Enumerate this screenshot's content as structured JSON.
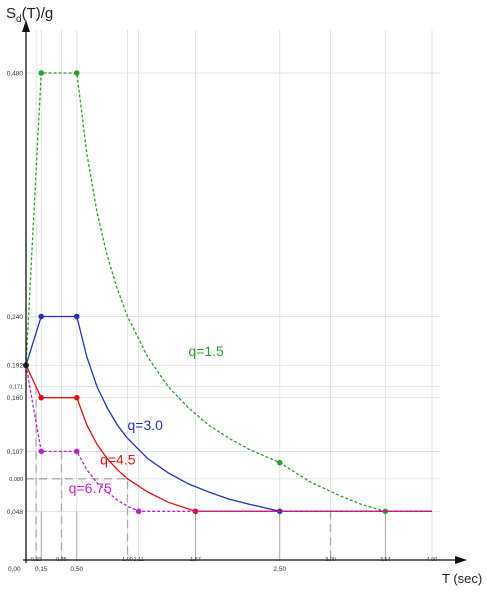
{
  "chart_data": {
    "type": "line",
    "title": "",
    "ylabel_main": "S",
    "ylabel_sub": "d",
    "ylabel_tail": "(T)/g",
    "xlabel": "T (sec)",
    "xlim": [
      0,
      4.0
    ],
    "ylim": [
      0,
      0.5
    ],
    "origin_label": "0,00",
    "grid": true,
    "x_gridlines": [
      0.1,
      0.15,
      0.35,
      0.5,
      1.0,
      1.11,
      1.67,
      2.5,
      3.0,
      3.54,
      4.0
    ],
    "x_ticks": [
      {
        "value": 0.1,
        "label": "0,10",
        "row": "upper"
      },
      {
        "value": 0.15,
        "label": "0,15",
        "row": "lower"
      },
      {
        "value": 0.35,
        "label": "0,35",
        "row": "upper"
      },
      {
        "value": 0.5,
        "label": "0,50",
        "row": "lower"
      },
      {
        "value": 1.0,
        "label": "1,00",
        "row": "upper"
      },
      {
        "value": 1.11,
        "label": "1,11",
        "row": "upper"
      },
      {
        "value": 1.67,
        "label": "1,67",
        "row": "upper"
      },
      {
        "value": 2.5,
        "label": "2,50",
        "row": "lower"
      },
      {
        "value": 3.0,
        "label": "3,00",
        "row": "upper"
      },
      {
        "value": 3.54,
        "label": "3,54",
        "row": "upper"
      },
      {
        "value": 4.0,
        "label": "4,00",
        "row": "upper"
      }
    ],
    "y_ticks": [
      {
        "value": 0.48,
        "label": "0,480",
        "size": "normal"
      },
      {
        "value": 0.24,
        "label": "0,240",
        "size": "normal"
      },
      {
        "value": 0.192,
        "label": "0,192",
        "size": "normal"
      },
      {
        "value": 0.171,
        "label": "0,171",
        "size": "small"
      },
      {
        "value": 0.16,
        "label": "0,160",
        "size": "normal"
      },
      {
        "value": 0.107,
        "label": "0,107",
        "size": "normal"
      },
      {
        "value": 0.08,
        "label": "0,080",
        "size": "small"
      },
      {
        "value": 0.048,
        "label": "0,048",
        "size": "normal"
      }
    ],
    "reference_lines": [
      {
        "points": [
          [
            0.0,
            0.08
          ],
          [
            1.0,
            0.08
          ],
          [
            1.0,
            0.0
          ]
        ]
      },
      {
        "points": [
          [
            0.35,
            0.107
          ],
          [
            0.35,
            0.0
          ]
        ]
      },
      {
        "points": [
          [
            0.1,
            0.171
          ],
          [
            0.1,
            0.0
          ]
        ]
      },
      {
        "points": [
          [
            3.0,
            0.048
          ],
          [
            3.0,
            0.0
          ]
        ]
      }
    ],
    "drop_lines": [
      0.15,
      0.5,
      1.67,
      2.5,
      3.54
    ],
    "series": [
      {
        "name": "q=1.5",
        "color": "#2ca02c",
        "dashed": true,
        "label_at": [
          1.6,
          0.201
        ],
        "points": [
          [
            0.0,
            0.192
          ],
          [
            0.15,
            0.48
          ],
          [
            0.5,
            0.48
          ],
          [
            0.6,
            0.4
          ],
          [
            0.7,
            0.343
          ],
          [
            0.8,
            0.3
          ],
          [
            0.9,
            0.267
          ],
          [
            1.0,
            0.24
          ],
          [
            1.2,
            0.2
          ],
          [
            1.4,
            0.171
          ],
          [
            1.6,
            0.15
          ],
          [
            1.8,
            0.133
          ],
          [
            2.0,
            0.12
          ],
          [
            2.2,
            0.109
          ],
          [
            2.5,
            0.096
          ],
          [
            2.8,
            0.077
          ],
          [
            3.1,
            0.063
          ],
          [
            3.3,
            0.055
          ],
          [
            3.54,
            0.048
          ],
          [
            4.0,
            0.048
          ]
        ],
        "markers": [
          [
            0.15,
            0.48
          ],
          [
            0.5,
            0.48
          ],
          [
            2.5,
            0.096
          ],
          [
            3.54,
            0.048
          ]
        ]
      },
      {
        "name": "q=3.0",
        "color": "#2233bb",
        "dashed": false,
        "label_at": [
          1.0,
          0.128
        ],
        "points": [
          [
            0.0,
            0.192
          ],
          [
            0.15,
            0.24
          ],
          [
            0.5,
            0.24
          ],
          [
            0.6,
            0.2
          ],
          [
            0.7,
            0.171
          ],
          [
            0.8,
            0.15
          ],
          [
            0.9,
            0.133
          ],
          [
            1.0,
            0.12
          ],
          [
            1.2,
            0.1
          ],
          [
            1.4,
            0.086
          ],
          [
            1.6,
            0.075
          ],
          [
            1.8,
            0.067
          ],
          [
            2.0,
            0.06
          ],
          [
            2.2,
            0.055
          ],
          [
            2.5,
            0.048
          ],
          [
            4.0,
            0.048
          ]
        ],
        "markers": [
          [
            0.15,
            0.24
          ],
          [
            0.5,
            0.24
          ],
          [
            2.5,
            0.048
          ]
        ]
      },
      {
        "name": "q=4.5",
        "color": "#dd1111",
        "dashed": false,
        "label_at": [
          0.73,
          0.094
        ],
        "points": [
          [
            0.0,
            0.192
          ],
          [
            0.15,
            0.16
          ],
          [
            0.5,
            0.16
          ],
          [
            0.6,
            0.133
          ],
          [
            0.7,
            0.114
          ],
          [
            0.8,
            0.1
          ],
          [
            0.9,
            0.089
          ],
          [
            1.0,
            0.08
          ],
          [
            1.2,
            0.067
          ],
          [
            1.4,
            0.057
          ],
          [
            1.67,
            0.048
          ],
          [
            4.0,
            0.048
          ]
        ],
        "markers": [
          [
            0.15,
            0.16
          ],
          [
            0.5,
            0.16
          ],
          [
            1.67,
            0.048
          ]
        ]
      },
      {
        "name": "q=6.75",
        "color": "#bb22cc",
        "dashed": true,
        "label_at": [
          0.42,
          0.066
        ],
        "points": [
          [
            0.0,
            0.192
          ],
          [
            0.15,
            0.107
          ],
          [
            0.5,
            0.107
          ],
          [
            0.6,
            0.089
          ],
          [
            0.7,
            0.076
          ],
          [
            0.8,
            0.067
          ],
          [
            0.9,
            0.059
          ],
          [
            1.0,
            0.053
          ],
          [
            1.11,
            0.048
          ],
          [
            4.0,
            0.048
          ]
        ],
        "markers": [
          [
            0.15,
            0.107
          ],
          [
            0.5,
            0.107
          ],
          [
            1.11,
            0.048
          ]
        ]
      }
    ],
    "shared_markers": [
      [
        0.0,
        0.192
      ]
    ]
  }
}
